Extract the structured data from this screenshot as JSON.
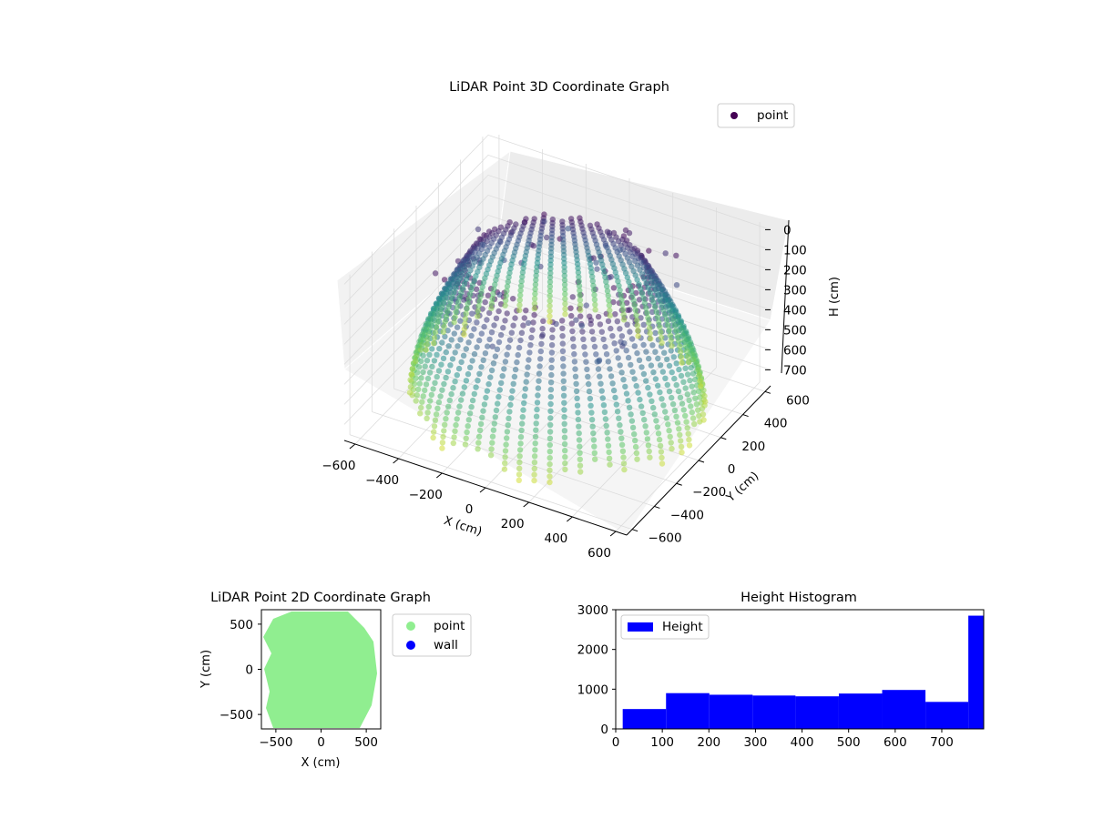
{
  "colors": {
    "colormap": [
      "#440154",
      "#3b528b",
      "#21918c",
      "#5ec962",
      "#fde725"
    ],
    "point2d": "#90ee90",
    "wall": "#0000ff",
    "histogram": "#0000ff",
    "pane": "#f2f2f2",
    "grid": "#dddddd"
  },
  "chart_data": [
    {
      "type": "scatter",
      "projection": "3d",
      "title": "LiDAR Point 3D Coordinate Graph",
      "xlabel": "X (cm)",
      "ylabel": "Y (cm)",
      "zlabel": "H (cm)",
      "xlim": [
        -650,
        650
      ],
      "ylim": [
        -650,
        650
      ],
      "zlim": [
        780,
        -20
      ],
      "z_inverted": true,
      "grid": true,
      "legend": {
        "entries": [
          "point"
        ],
        "placement": "top-right"
      },
      "x_ticks": [
        "−600",
        "−400",
        "−200",
        "0",
        "200",
        "400",
        "600"
      ],
      "y_ticks": [
        "−600",
        "−400",
        "−200",
        "0",
        "200",
        "400",
        "600"
      ],
      "z_ticks": [
        "0",
        "100",
        "200",
        "300",
        "400",
        "500",
        "600",
        "700"
      ],
      "color_by": "H (cm)",
      "series": [
        {
          "name": "point",
          "shape": "hemispherical wall scan, radius ~620 cm, height 0-780 cm",
          "sample_points": [
            {
              "x": 600,
              "y": 0,
              "h": 700
            },
            {
              "x": 424,
              "y": 424,
              "h": 650
            },
            {
              "x": 0,
              "y": 600,
              "h": 700
            },
            {
              "x": -424,
              "y": 424,
              "h": 650
            },
            {
              "x": -600,
              "y": 0,
              "h": 700
            },
            {
              "x": -424,
              "y": -424,
              "h": 650
            },
            {
              "x": 0,
              "y": -600,
              "h": 700
            },
            {
              "x": 424,
              "y": -424,
              "h": 650
            },
            {
              "x": 580,
              "y": 100,
              "h": 150
            },
            {
              "x": -560,
              "y": -150,
              "h": 120
            },
            {
              "x": 120,
              "y": -580,
              "h": 100
            },
            {
              "x": -200,
              "y": 560,
              "h": 60
            },
            {
              "x": 0,
              "y": 0,
              "h": 780
            },
            {
              "x": -100,
              "y": 350,
              "h": 20
            },
            {
              "x": 200,
              "y": 300,
              "h": 30
            }
          ]
        }
      ]
    },
    {
      "type": "scatter",
      "title": "LiDAR Point 2D Coordinate Graph",
      "xlabel": "X (cm)",
      "ylabel": "Y (cm)",
      "xlim": [
        -660,
        660
      ],
      "ylim": [
        -660,
        660
      ],
      "x_ticks": [
        "−500",
        "0",
        "500"
      ],
      "y_ticks": [
        "−500",
        "0",
        "500"
      ],
      "legend": {
        "entries": [
          "point",
          "wall"
        ],
        "placement": "outside-right"
      },
      "series": [
        {
          "name": "point",
          "shape": "filled disc of radius ~620 cm",
          "color": "#90ee90"
        },
        {
          "name": "wall",
          "values": [],
          "color": "#0000ff"
        }
      ]
    },
    {
      "type": "bar",
      "subtype": "histogram",
      "title": "Height Histogram",
      "xlim": [
        0,
        790
      ],
      "ylim": [
        0,
        3000
      ],
      "x_ticks": [
        "0",
        "100",
        "200",
        "300",
        "400",
        "500",
        "600",
        "700"
      ],
      "y_ticks": [
        "0",
        "1000",
        "2000",
        "3000"
      ],
      "legend": {
        "entries": [
          "Height"
        ],
        "placement": "top-left"
      },
      "series": [
        {
          "name": "Height",
          "bins": [
            {
              "from": 15,
              "to": 108,
              "count": 500
            },
            {
              "from": 108,
              "to": 201,
              "count": 900
            },
            {
              "from": 201,
              "to": 294,
              "count": 860
            },
            {
              "from": 294,
              "to": 386,
              "count": 840
            },
            {
              "from": 386,
              "to": 479,
              "count": 820
            },
            {
              "from": 479,
              "to": 572,
              "count": 890
            },
            {
              "from": 572,
              "to": 665,
              "count": 980
            },
            {
              "from": 665,
              "to": 757,
              "count": 680
            },
            {
              "from": 757,
              "to": 850,
              "count": 2850
            }
          ]
        }
      ]
    }
  ]
}
